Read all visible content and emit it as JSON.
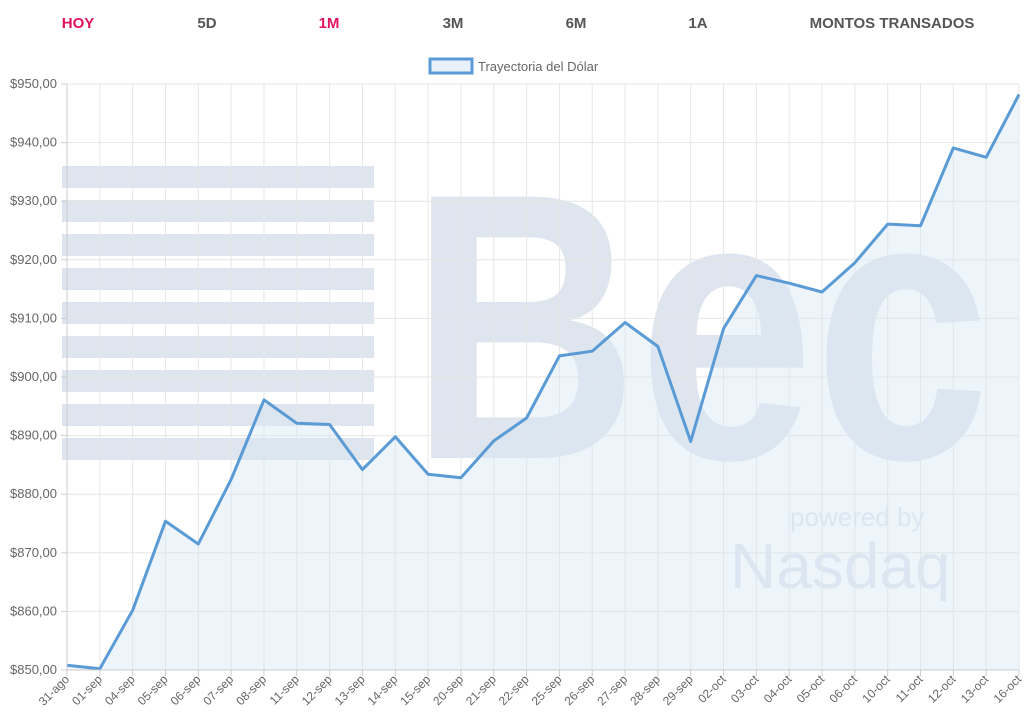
{
  "tabs": [
    {
      "label": "HOY",
      "active": false
    },
    {
      "label": "5D",
      "active": false
    },
    {
      "label": "1M",
      "active": true
    },
    {
      "label": "3M",
      "active": false
    },
    {
      "label": "6M",
      "active": false
    },
    {
      "label": "1A",
      "active": false
    },
    {
      "label": "MONTOS TRANSADOS",
      "active": false
    }
  ],
  "watermark": {
    "text": "Bec",
    "subtext": "powered by",
    "brand": "Nasdaq"
  },
  "colors": {
    "accent": "#e0115f",
    "line": "#5b9bd5",
    "fill": "#e8f1fa",
    "grid": "#e6e6e6",
    "tick": "#666666"
  },
  "chart_data": {
    "type": "line",
    "legend": "Trayectoria del Dólar",
    "legend_position": "top-center",
    "grid": true,
    "ylim": [
      850,
      950
    ],
    "yticks": [
      850,
      860,
      870,
      880,
      890,
      900,
      910,
      920,
      930,
      940,
      950
    ],
    "ytick_labels": [
      "$850,00",
      "$860,00",
      "$870,00",
      "$880,00",
      "$890,00",
      "$900,00",
      "$910,00",
      "$920,00",
      "$930,00",
      "$940,00",
      "$950,00"
    ],
    "categories": [
      "31-ago",
      "01-sep",
      "04-sep",
      "05-sep",
      "06-sep",
      "07-sep",
      "08-sep",
      "11-sep",
      "12-sep",
      "13-sep",
      "14-sep",
      "15-sep",
      "20-sep",
      "21-sep",
      "22-sep",
      "25-sep",
      "26-sep",
      "27-sep",
      "28-sep",
      "29-sep",
      "02-oct",
      "03-oct",
      "04-oct",
      "05-oct",
      "06-oct",
      "10-oct",
      "11-oct",
      "12-oct",
      "13-oct",
      "16-oct"
    ],
    "series": [
      {
        "name": "Trayectoria del Dólar",
        "values": [
          850.8,
          850.2,
          860.2,
          875.4,
          871.5,
          882.5,
          896.1,
          892.1,
          891.9,
          884.2,
          889.8,
          883.4,
          882.8,
          889.1,
          893.0,
          903.6,
          904.4,
          909.3,
          905.2,
          889.0,
          908.3,
          917.3,
          916.0,
          914.5,
          919.5,
          926.1,
          925.8,
          939.1,
          937.5,
          948.2
        ]
      }
    ]
  }
}
